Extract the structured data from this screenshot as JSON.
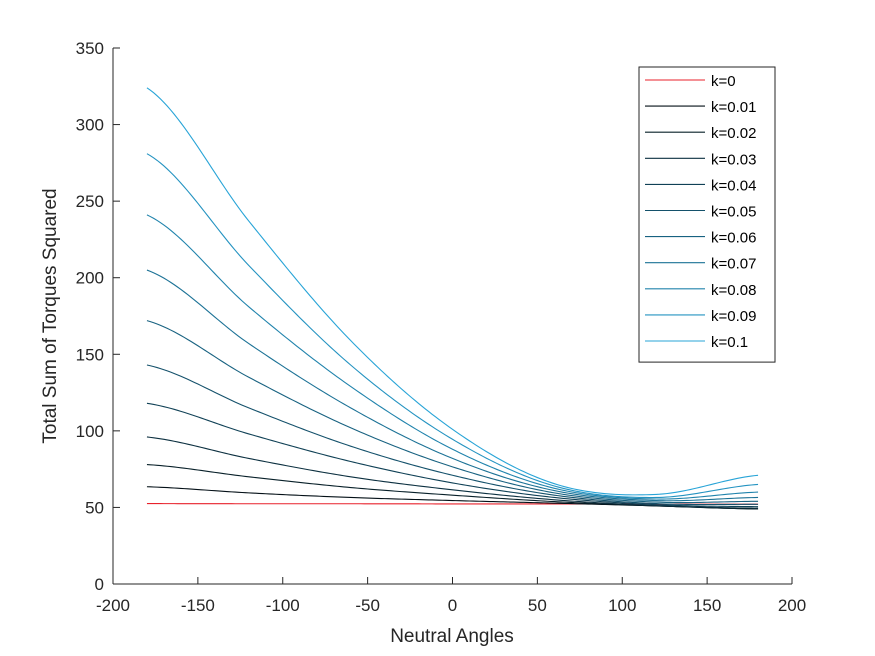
{
  "chart_data": {
    "type": "line",
    "title": "",
    "xlabel": "Neutral Angles",
    "ylabel": "Total Sum of Torques Squared",
    "xlim": [
      -200,
      200
    ],
    "ylim": [
      0,
      350
    ],
    "x_ticks": [
      "-200",
      "-150",
      "-100",
      "-50",
      "0",
      "50",
      "100",
      "150",
      "200"
    ],
    "y_ticks": [
      "0",
      "50",
      "100",
      "150",
      "200",
      "250",
      "300",
      "350"
    ],
    "grid": false,
    "legend_position": "top-right",
    "x": [
      -180,
      -120,
      -60,
      0,
      60,
      120,
      180
    ],
    "series": [
      {
        "name": "k=0",
        "color": "#e8212b",
        "values": [
          52.5,
          52.4,
          52.4,
          52.3,
          52.3,
          52.2,
          52.1
        ]
      },
      {
        "name": "k=0.01",
        "color": "#041017",
        "values": [
          63.5,
          59.5,
          56.5,
          54.5,
          52.8,
          51.0,
          49.0
        ]
      },
      {
        "name": "k=0.02",
        "color": "#082029",
        "values": [
          78.0,
          70.0,
          63.0,
          58.0,
          53.8,
          51.0,
          49.0
        ]
      },
      {
        "name": "k=0.03",
        "color": "#0c3040",
        "values": [
          96.0,
          82.0,
          70.0,
          61.5,
          55.0,
          51.2,
          49.5
        ]
      },
      {
        "name": "k=0.04",
        "color": "#104156",
        "values": [
          118.0,
          98.0,
          80.0,
          66.0,
          56.5,
          51.8,
          50.5
        ]
      },
      {
        "name": "k=0.05",
        "color": "#14516b",
        "values": [
          143.0,
          115.0,
          90.0,
          71.0,
          58.0,
          52.5,
          52.0
        ]
      },
      {
        "name": "k=0.06",
        "color": "#186281",
        "values": [
          172.0,
          135.0,
          102.0,
          76.5,
          59.5,
          53.5,
          54.0
        ]
      },
      {
        "name": "k=0.07",
        "color": "#1c7296",
        "values": [
          205.0,
          157.0,
          115.0,
          82.0,
          61.0,
          54.5,
          56.5
        ]
      },
      {
        "name": "k=0.08",
        "color": "#2083ac",
        "values": [
          241.0,
          181.0,
          129.0,
          88.0,
          62.5,
          55.5,
          60.0
        ]
      },
      {
        "name": "k=0.09",
        "color": "#2493c1",
        "values": [
          281.0,
          208.0,
          143.0,
          94.5,
          64.0,
          56.5,
          65.0
        ]
      },
      {
        "name": "k=0.1",
        "color": "#28a4d7",
        "values": [
          324.0,
          237.0,
          159.0,
          101.0,
          65.5,
          58.5,
          71.0
        ]
      }
    ]
  }
}
